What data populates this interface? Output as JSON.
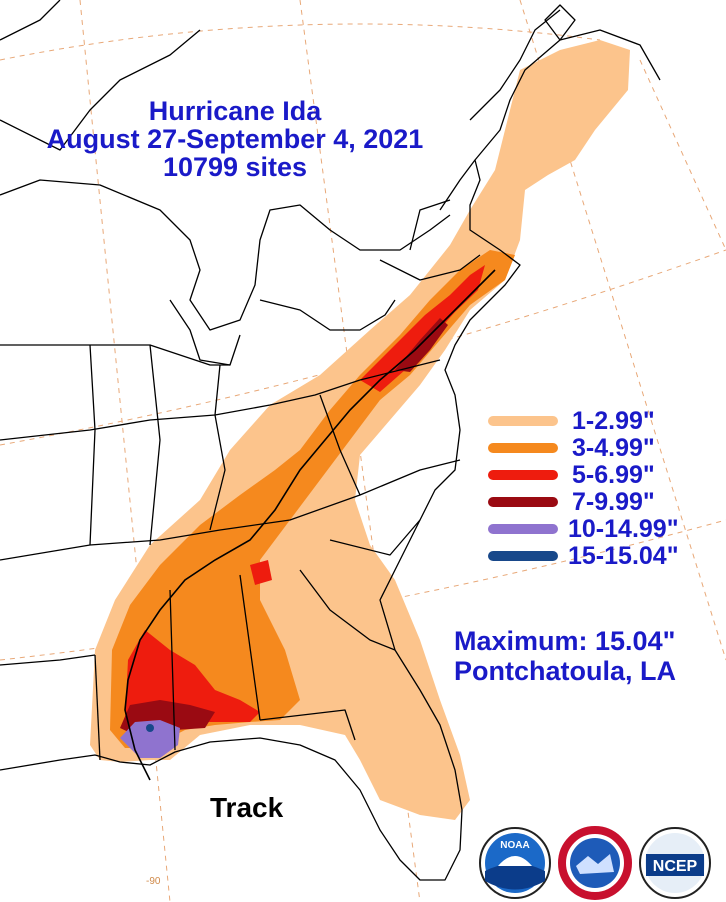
{
  "title": {
    "line1": "Hurricane Ida",
    "line2": "August 27-September 4, 2021",
    "line3": "10799 sites"
  },
  "legend": [
    {
      "label": "1-2.99\"",
      "color": "#fcc48c"
    },
    {
      "label": "3-4.99\"",
      "color": "#f5891e"
    },
    {
      "label": "5-6.99\"",
      "color": "#ee1c0e"
    },
    {
      "label": "7-9.99\"",
      "color": "#9a0a12"
    },
    {
      "label": "10-14.99\"",
      "color": "#8f73cf"
    },
    {
      "label": "15-15.04\"",
      "color": "#18488a"
    }
  ],
  "maximum": {
    "line1": "Maximum: 15.04\"",
    "line2": "Pontchatoula, LA"
  },
  "track_label": "Track",
  "longitude_label": "-90",
  "logos": [
    {
      "name": "noaa-logo",
      "text": "NOAA"
    },
    {
      "name": "nws-logo",
      "text": ""
    },
    {
      "name": "ncep-logo",
      "text": "NCEP"
    }
  ]
}
